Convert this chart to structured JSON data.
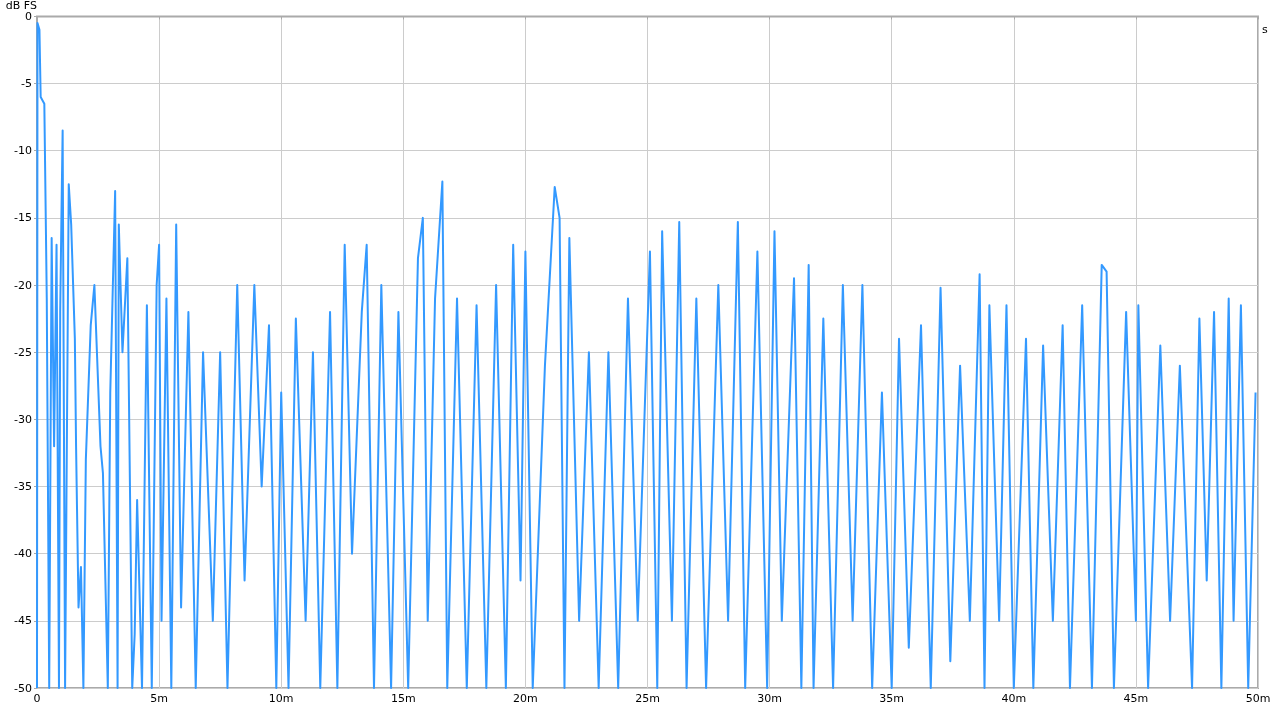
{
  "chart_data": {
    "type": "line",
    "xlabel": "s",
    "ylabel": "dB FS",
    "xlim": [
      0,
      50
    ],
    "ylim": [
      -50,
      0
    ],
    "xticks": [
      0,
      {
        "value": 5,
        "label": "5m"
      },
      {
        "value": 10,
        "label": "10m"
      },
      {
        "value": 15,
        "label": "15m"
      },
      {
        "value": 20,
        "label": "20m"
      },
      {
        "value": 25,
        "label": "25m"
      },
      {
        "value": 30,
        "label": "30m"
      },
      {
        "value": 35,
        "label": "35m"
      },
      {
        "value": 40,
        "label": "40m"
      },
      {
        "value": 45,
        "label": "45m"
      },
      {
        "value": 50,
        "label": "50m"
      }
    ],
    "yticks": [
      -50,
      -45,
      -40,
      -35,
      -30,
      -25,
      -20,
      -15,
      -10,
      -5,
      0
    ],
    "grid": true,
    "marker": "none",
    "line_style": "solid",
    "series": [
      {
        "color": "#3399ff",
        "x": [
          0.0,
          0.02,
          0.1,
          0.15,
          0.3,
          0.4,
          0.5,
          0.6,
          0.7,
          0.8,
          0.9,
          0.95,
          1.0,
          1.05,
          1.15,
          1.3,
          1.4,
          1.55,
          1.6,
          1.7,
          1.8,
          1.9,
          2.0,
          2.2,
          2.35,
          2.6,
          2.7,
          2.9,
          3.0,
          3.2,
          3.3,
          3.35,
          3.5,
          3.7,
          3.9,
          4.0,
          4.1,
          4.3,
          4.5,
          4.7,
          4.9,
          5.0,
          5.1,
          5.3,
          5.5,
          5.7,
          5.9,
          6.2,
          6.5,
          6.8,
          7.2,
          7.5,
          7.8,
          8.2,
          8.5,
          8.9,
          9.2,
          9.5,
          9.8,
          10.0,
          10.3,
          10.6,
          11.0,
          11.3,
          11.6,
          12.0,
          12.3,
          12.6,
          12.9,
          13.3,
          13.5,
          13.8,
          14.1,
          14.5,
          14.8,
          15.2,
          15.6,
          15.8,
          16.0,
          16.3,
          16.6,
          16.8,
          17.2,
          17.6,
          18.0,
          18.4,
          18.8,
          19.2,
          19.5,
          19.8,
          20.0,
          20.3,
          20.8,
          21.2,
          21.4,
          21.6,
          21.8,
          22.2,
          22.6,
          23.0,
          23.4,
          23.8,
          24.2,
          24.6,
          25.1,
          25.4,
          25.6,
          26.0,
          26.3,
          26.6,
          27.0,
          27.4,
          27.9,
          28.3,
          28.7,
          29.0,
          29.5,
          29.9,
          30.2,
          30.5,
          31.0,
          31.3,
          31.6,
          31.8,
          32.2,
          32.6,
          33.0,
          33.4,
          33.8,
          34.2,
          34.6,
          35.0,
          35.3,
          35.7,
          36.2,
          36.6,
          37.0,
          37.4,
          37.8,
          38.2,
          38.6,
          38.8,
          39.0,
          39.4,
          39.7,
          40.0,
          40.5,
          40.8,
          41.2,
          41.6,
          42.0,
          42.3,
          42.8,
          43.2,
          43.6,
          43.8,
          44.1,
          44.6,
          45.0,
          45.1,
          45.5,
          46.0,
          46.4,
          46.8,
          47.3,
          47.6,
          47.9,
          48.2,
          48.5,
          48.8,
          49.0,
          49.3,
          49.6,
          49.9
        ],
        "values": [
          -50,
          -0.5,
          -1,
          -6,
          -6.5,
          -21,
          -50,
          -16.5,
          -32,
          -17,
          -50,
          -22,
          -15,
          -8.5,
          -50,
          -12.5,
          -15.5,
          -24,
          -32,
          -44,
          -41,
          -50,
          -33,
          -23,
          -20,
          -32,
          -34,
          -50,
          -28,
          -13,
          -50,
          -15.5,
          -25,
          -18,
          -50,
          -46,
          -36,
          -50,
          -21.5,
          -50,
          -20,
          -17,
          -45,
          -21,
          -50,
          -15.5,
          -44,
          -22,
          -50,
          -25,
          -45,
          -25,
          -50,
          -20,
          -42,
          -20,
          -35,
          -23,
          -50,
          -28,
          -50,
          -22.5,
          -45,
          -25,
          -50,
          -22,
          -50,
          -17,
          -40,
          -22,
          -17,
          -50,
          -20,
          -50,
          -22,
          -50,
          -18,
          -15,
          -45,
          -21,
          -12.3,
          -50,
          -21,
          -50,
          -21.5,
          -50,
          -20,
          -50,
          -17,
          -42,
          -17.5,
          -50,
          -26,
          -12.7,
          -15,
          -50,
          -16.5,
          -45,
          -25,
          -50,
          -25,
          -50,
          -21,
          -45,
          -17.5,
          -50,
          -16,
          -45,
          -15.3,
          -50,
          -21,
          -50,
          -20,
          -45,
          -15.3,
          -50,
          -17.5,
          -50,
          -16,
          -45,
          -19.5,
          -50,
          -18.5,
          -50,
          -22.5,
          -50,
          -20,
          -45,
          -20,
          -50,
          -28,
          -50,
          -24,
          -47,
          -23,
          -50,
          -20.2,
          -48,
          -26,
          -45,
          -19.2,
          -50,
          -21.5,
          -45,
          -21.5,
          -50,
          -24,
          -50,
          -24.5,
          -45,
          -23,
          -50,
          -21.5,
          -50,
          -18.5,
          -19,
          -50,
          -22,
          -45,
          -21.5,
          -50,
          -24.5,
          -45,
          -26,
          -50,
          -22.5,
          -42,
          -22,
          -50,
          -21,
          -45,
          -21.5,
          -50,
          -28
        ]
      }
    ]
  }
}
